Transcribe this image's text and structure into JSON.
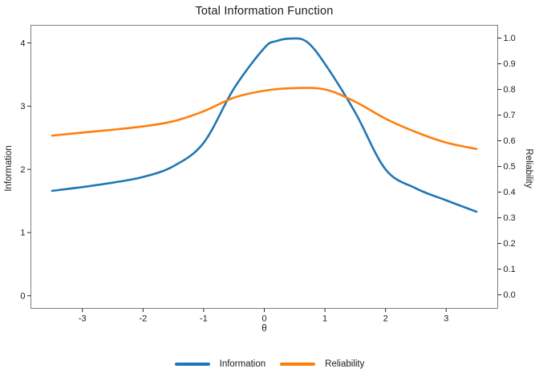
{
  "chart_data": {
    "type": "line",
    "title": "Total Information Function",
    "xlabel": "θ",
    "grid": false,
    "legend_position": "bottom",
    "x_range": [
      -3.85,
      3.85
    ],
    "x_ticks": {
      "values": [
        -3,
        -2,
        -1,
        0,
        1,
        2,
        3
      ],
      "labels": [
        "-3",
        "-2",
        "-1",
        "0",
        "1",
        "2",
        "3"
      ]
    },
    "axes": {
      "left": {
        "label": "Information",
        "range": [
          -0.2,
          4.28
        ],
        "tick_values": [
          0,
          1,
          2,
          3,
          4
        ],
        "tick_labels": [
          "0",
          "1",
          "2",
          "3",
          "4"
        ]
      },
      "right": {
        "label": "Reliability",
        "range": [
          -0.053,
          1.05
        ],
        "tick_values": [
          0,
          0.1,
          0.2,
          0.3,
          0.4,
          0.5,
          0.6,
          0.7,
          0.8,
          0.9,
          1.0
        ],
        "tick_labels": [
          "0.0",
          "0.1",
          "0.2",
          "0.3",
          "0.4",
          "0.5",
          "0.6",
          "0.7",
          "0.8",
          "0.9",
          "1.0"
        ]
      }
    },
    "series": [
      {
        "name": "Information",
        "axis": "left",
        "color": "#1f77b4",
        "x": [
          -3.5,
          -3.0,
          -2.5,
          -2.0,
          -1.5,
          -1.0,
          -0.5,
          0.0,
          0.2,
          0.45,
          0.7,
          1.0,
          1.5,
          2.0,
          2.5,
          3.0,
          3.5
        ],
        "y": [
          1.66,
          1.72,
          1.79,
          1.88,
          2.05,
          2.42,
          3.28,
          3.92,
          4.03,
          4.07,
          4.02,
          3.67,
          2.9,
          2.0,
          1.7,
          1.51,
          1.33
        ]
      },
      {
        "name": "Reliability",
        "axis": "right",
        "color": "#ff7f0e",
        "x": [
          -3.5,
          -3.0,
          -2.5,
          -2.0,
          -1.5,
          -1.0,
          -0.5,
          0.0,
          0.45,
          1.0,
          1.5,
          2.0,
          2.5,
          3.0,
          3.5
        ],
        "y": [
          0.62,
          0.632,
          0.643,
          0.656,
          0.676,
          0.715,
          0.768,
          0.795,
          0.805,
          0.8,
          0.752,
          0.686,
          0.634,
          0.593,
          0.568
        ]
      }
    ],
    "frame_color": "#7d7d7d",
    "tick_color": "#262626",
    "text_color": "#1a1a1a"
  }
}
